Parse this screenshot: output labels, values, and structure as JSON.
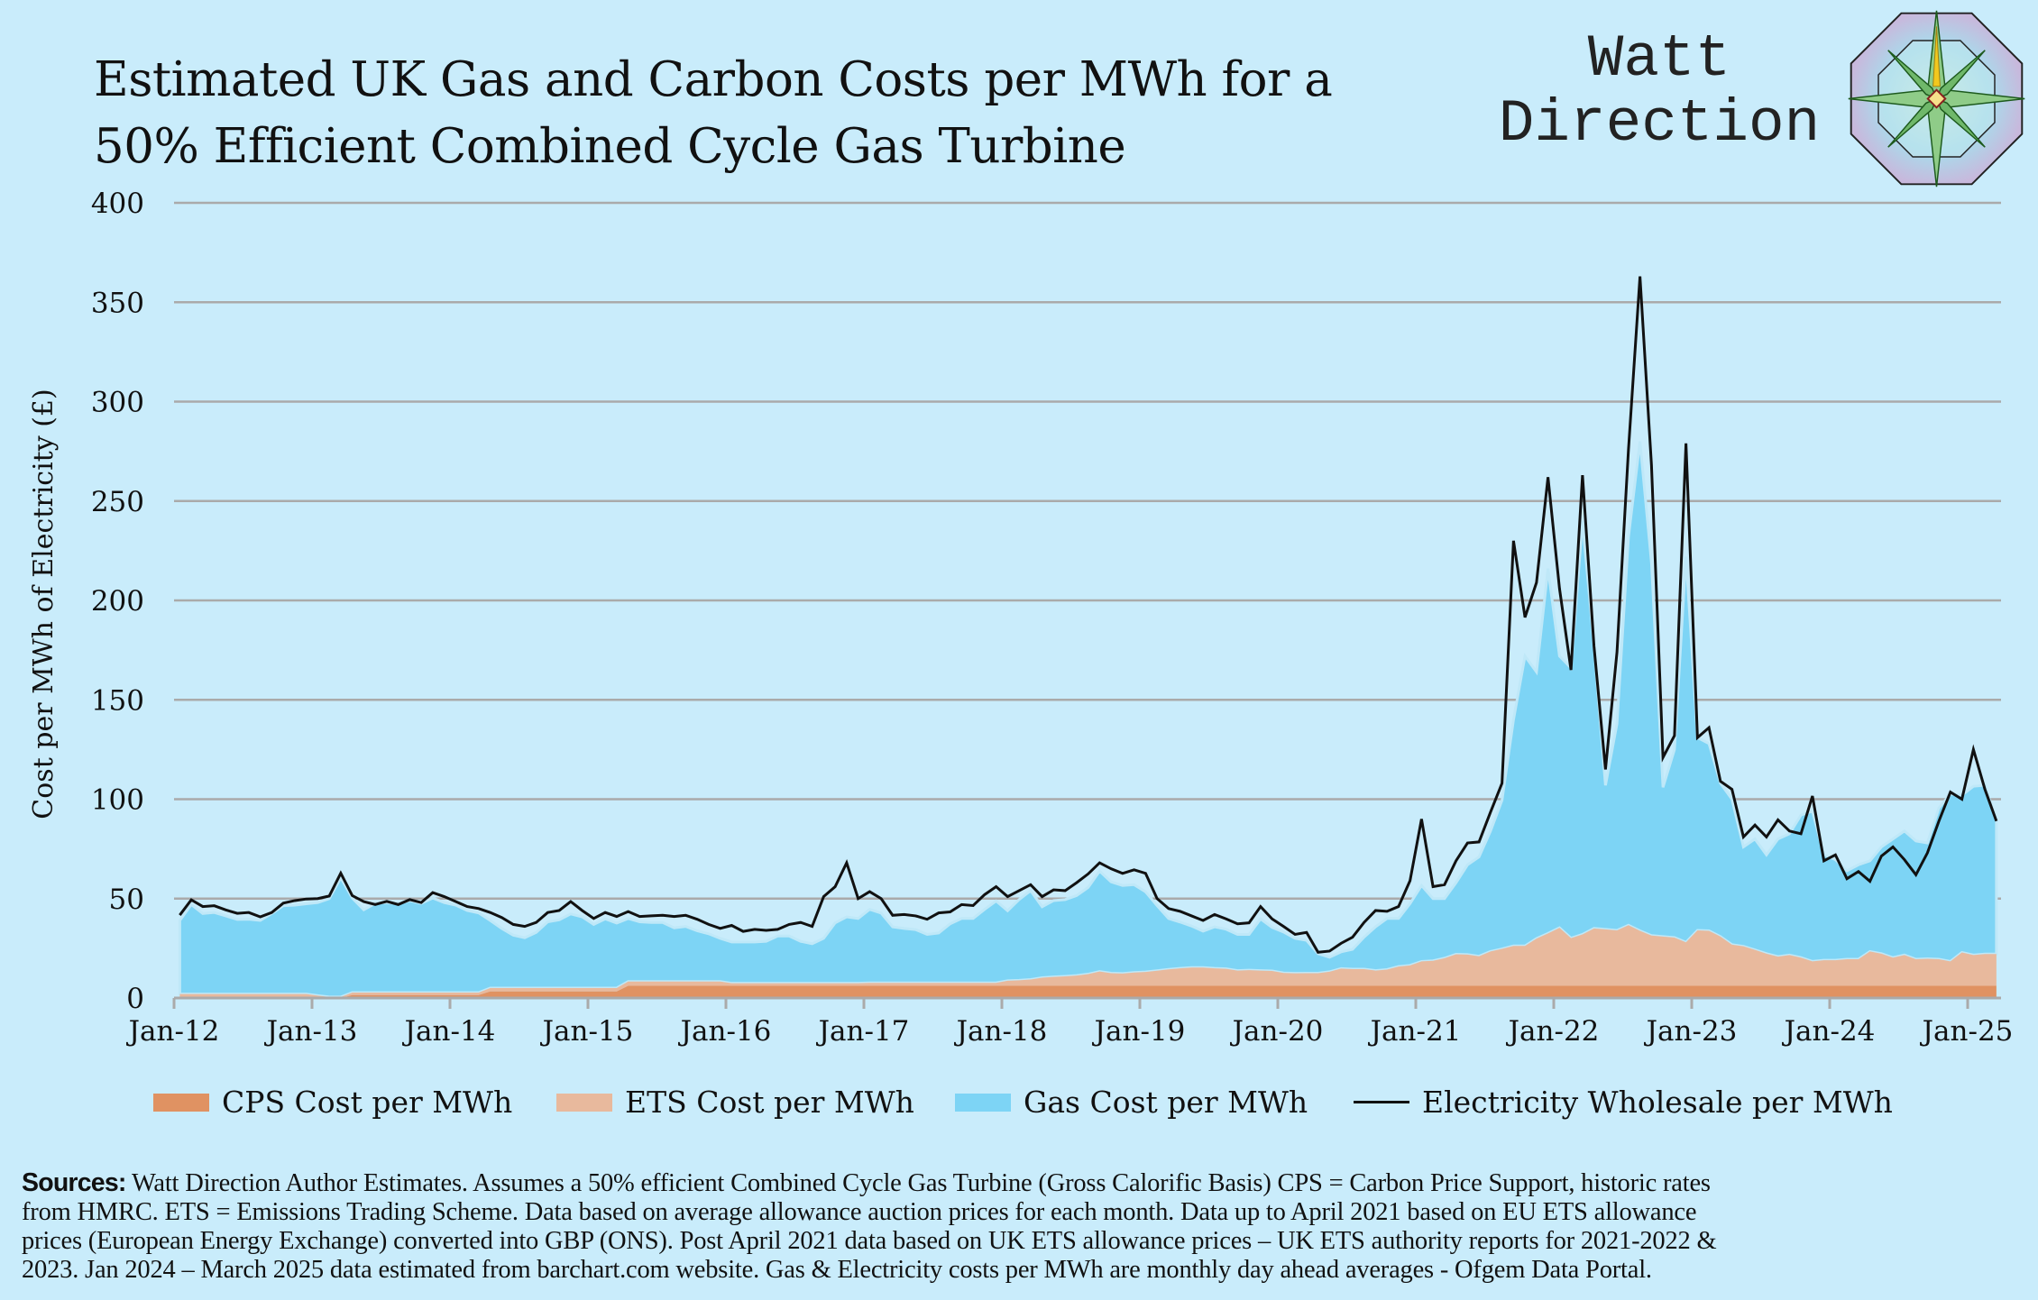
{
  "header": {
    "title_lines": [
      "Estimated UK Gas and Carbon Costs per MWh for a",
      "50% Efficient Combined Cycle Gas Turbine"
    ],
    "brand_lines": [
      "Watt",
      "Direction"
    ],
    "logo_icon": "compass-rose-icon"
  },
  "colors": {
    "background": "#c9ecfb",
    "cps": "#e09262",
    "ets": "#e8b99d",
    "gas": "#7dd4f5",
    "electricity": "#111111",
    "grid": "#aaaaaa"
  },
  "chart_data": {
    "type": "area",
    "title": "Estimated UK Gas and Carbon Costs per MWh for a 50% Efficient Combined Cycle Gas Turbine",
    "xlabel": "",
    "ylabel": "Cost per MWh of Electricity (£)",
    "ylim": [
      0,
      400
    ],
    "yticks": [
      "0",
      "50",
      "100",
      "150",
      "200",
      "250",
      "300",
      "350",
      "400"
    ],
    "xticks": [
      "Jan-12",
      "Jan-13",
      "Jan-14",
      "Jan-15",
      "Jan-16",
      "Jan-17",
      "Jan-18",
      "Jan-19",
      "Jan-20",
      "Jan-21",
      "Jan-22",
      "Jan-23",
      "Jan-24",
      "Jan-25"
    ],
    "x_start": "Jan-12",
    "x_end": "Mar-25",
    "frequency": "monthly",
    "grid": true,
    "legend_position": "bottom",
    "stacked": true,
    "series": [
      {
        "name": "CPS Cost per MWh",
        "kind": "area",
        "values": [
          0,
          0,
          0,
          0,
          0,
          0,
          0,
          0,
          0,
          0,
          0,
          0,
          0,
          0,
          0,
          1.5,
          1.5,
          1.5,
          1.5,
          1.5,
          1.5,
          1.5,
          1.5,
          1.5,
          1.5,
          1.5,
          1.5,
          3.3,
          3.3,
          3.3,
          3.3,
          3.3,
          3.3,
          3.3,
          3.3,
          3.3,
          3.3,
          3.3,
          3.3,
          6.1,
          6.1,
          6.1,
          6.1,
          6.1,
          6.1,
          6.1,
          6.1,
          6.1,
          6.1,
          6.1,
          6.1,
          6.1,
          6.1,
          6.1,
          6.1,
          6.1,
          6.1,
          6.1,
          6.1,
          6.1,
          6.1,
          6.1,
          6.1,
          6.1,
          6.1,
          6.1,
          6.1,
          6.1,
          6.1,
          6.1,
          6.1,
          6.1,
          6.1,
          6.1,
          6.1,
          6.1,
          6.1,
          6.1,
          6.1,
          6.1,
          6.1,
          6.1,
          6.1,
          6.1,
          6.1,
          6.1,
          6.1,
          6.1,
          6.1,
          6.1,
          6.1,
          6.1,
          6.1,
          6.1,
          6.1,
          6.1,
          6.1,
          6.1,
          6.1,
          6.1,
          6.1,
          6.1,
          6.1,
          6.1,
          6.1,
          6.1,
          6.1,
          6.1,
          6.1,
          6.1,
          6.1,
          6.1,
          6.1,
          6.1,
          6.1,
          6.1,
          6.1,
          6.1,
          6.1,
          6.1,
          6.1,
          6.1,
          6.1,
          6.1,
          6.1,
          6.1,
          6.1,
          6.1,
          6.1,
          6.1,
          6.1,
          6.1,
          6.1,
          6.1,
          6.1,
          6.1,
          6.1,
          6.1,
          6.1,
          6.1,
          6.1,
          6.1,
          6.1,
          6.1,
          6.1,
          6.1,
          6.1,
          6.1,
          6.1,
          6.1,
          6.1,
          6.1,
          6.1,
          6.1,
          6.1,
          6.1,
          6.1,
          6.1,
          6.1
        ]
      },
      {
        "name": "ETS Cost per MWh",
        "kind": "area",
        "values": [
          2,
          2,
          2,
          2,
          2,
          2,
          2,
          2,
          2,
          2,
          2,
          2,
          1.2,
          0.5,
          0.5,
          1.2,
          1.2,
          1.2,
          1.2,
          1.2,
          1.2,
          1.2,
          1.2,
          1.2,
          1.2,
          1.2,
          1.2,
          1.7,
          1.7,
          1.7,
          1.7,
          1.7,
          1.7,
          1.7,
          1.7,
          1.7,
          1.7,
          1.7,
          1.7,
          2.2,
          2.2,
          2.2,
          2.2,
          2.2,
          2.2,
          2.2,
          2.2,
          2.2,
          1.3,
          1.3,
          1.3,
          1.3,
          1.3,
          1.3,
          1.3,
          1.3,
          1.3,
          1.3,
          1.3,
          1.3,
          1.5,
          1.5,
          1.5,
          1.5,
          1.5,
          1.5,
          1.5,
          1.5,
          1.5,
          1.5,
          1.5,
          1.5,
          2.6,
          2.8,
          3.2,
          4.1,
          4.5,
          4.8,
          5.2,
          5.9,
          7.2,
          6.4,
          6.2,
          6.7,
          7,
          7.6,
          8.3,
          8.8,
          9.2,
          9.2,
          8.8,
          8.6,
          7.7,
          7.9,
          7.7,
          7.5,
          6.5,
          6.3,
          6.4,
          6.4,
          7.1,
          8.7,
          8.4,
          8.4,
          7.7,
          8.2,
          9.7,
          10.3,
          12.3,
          12.6,
          13.9,
          15.9,
          15.7,
          14.9,
          17.3,
          18.6,
          20.1,
          20.1,
          23.8,
          26.4,
          29.2,
          24,
          25.9,
          28.9,
          28.4,
          27.9,
          30.5,
          27.7,
          25.3,
          24.8,
          24.3,
          21.9,
          27.9,
          27.7,
          24.8,
          20.7,
          19.9,
          18.1,
          16.2,
          14.7,
          15.5,
          14.2,
          12.3,
          12.9,
          12.9,
          13.4,
          13.4,
          17.3,
          16.2,
          14.2,
          15.5,
          13.4,
          13.6,
          13.4,
          12.3,
          16.8,
          15.5,
          16,
          16
        ]
      },
      {
        "name": "Gas Cost per MWh",
        "kind": "area",
        "values": [
          37,
          45,
          40.5,
          41,
          39.3,
          37.5,
          37.6,
          37,
          40.5,
          44.4,
          44.7,
          45.4,
          46.8,
          49.5,
          60,
          47.6,
          41.7,
          44.9,
          45.3,
          44.7,
          46.3,
          44.9,
          47.6,
          45.3,
          44,
          41.3,
          40.1,
          34,
          30,
          26.6,
          25.3,
          28,
          33.3,
          34.3,
          37.3,
          35.8,
          32,
          34.8,
          32.7,
          31.7,
          30,
          29.7,
          29.7,
          27,
          27.7,
          25.5,
          24,
          21.7,
          20.8,
          20.8,
          20.8,
          21.1,
          23.8,
          23.8,
          21.1,
          19.9,
          22.6,
          30.4,
          33.4,
          32.6,
          37,
          35.1,
          28.2,
          27.4,
          26.8,
          24.4,
          25.1,
          29.7,
          32.4,
          32.4,
          37,
          41.2,
          35.2,
          40.6,
          44.7,
          35.7,
          38.4,
          38.6,
          40.2,
          43.6,
          50.5,
          45.9,
          44.3,
          44.2,
          40.3,
          32.8,
          25.6,
          23.3,
          20.9,
          18.3,
          20.9,
          19.9,
          18.2,
          18,
          26,
          21.9,
          20.6,
          17.6,
          16.5,
          9.8,
          7.3,
          8.4,
          10,
          16.1,
          22,
          25.7,
          24.2,
          31.1,
          38.2,
          31.3,
          30,
          36,
          45.2,
          50,
          60.6,
          74.8,
          113.8,
          145.8,
          134.1,
          183.5,
          136.7,
          135.9,
          208,
          142,
          72.5,
          104,
          195.4,
          246.2,
          187.6,
          75.1,
          94.6,
          194,
          97,
          94.2,
          77.1,
          73.2,
          50,
          55.8,
          49.7,
          59.2,
          61,
          71.7,
          75.6,
          53,
          50.6,
          44.5,
          47.5,
          45.6,
          53.7,
          59.7,
          62.4,
          59.5,
          58.3,
          76.1,
          84.2,
          79.1,
          84.9,
          84.9,
          66.9
        ]
      },
      {
        "name": "Electricity Wholesale per MWh",
        "kind": "line",
        "values": [
          41.7,
          49.4,
          46,
          46.4,
          44.3,
          42.6,
          43,
          40.8,
          43,
          47.7,
          49,
          49.8,
          50,
          51.3,
          62.8,
          51.5,
          48.5,
          47,
          48.6,
          47,
          49.5,
          48,
          53,
          51,
          48.5,
          46,
          45,
          43,
          40.5,
          37,
          36,
          38,
          43,
          44,
          48.5,
          44,
          40,
          43,
          41,
          43.5,
          41,
          41.3,
          41.6,
          41,
          41.6,
          39.6,
          37,
          35,
          36.5,
          33.5,
          34.5,
          34,
          34.5,
          37,
          38,
          36,
          51,
          56,
          68,
          50,
          53.5,
          50,
          41.6,
          42,
          41.3,
          39.6,
          42.8,
          43.3,
          47,
          46.5,
          52,
          56,
          51,
          54,
          57,
          51,
          54.4,
          54,
          58,
          62.4,
          68,
          65,
          62.7,
          64.5,
          62.7,
          50,
          45,
          43.6,
          41.3,
          39,
          42,
          39.8,
          37.3,
          37.8,
          46,
          39.8,
          36,
          32,
          33,
          23,
          23.6,
          27.5,
          30.6,
          38,
          44,
          43.6,
          46,
          59,
          90,
          56,
          57,
          69,
          78,
          78.5,
          93.5,
          108,
          230,
          191.5,
          209,
          262,
          206,
          165,
          263,
          177,
          115,
          174,
          276,
          363,
          268,
          121,
          132,
          279,
          131,
          136,
          109,
          105,
          81,
          87,
          81,
          89.6,
          84,
          82.6,
          101.6,
          69,
          72,
          60,
          63.6,
          58.7,
          71.4,
          76,
          69.6,
          62,
          73,
          89,
          103.6,
          100,
          125,
          105,
          89
        ]
      }
    ]
  },
  "legend": [
    {
      "label": "CPS Cost per MWh"
    },
    {
      "label": "ETS Cost per MWh"
    },
    {
      "label": "Gas Cost per MWh"
    },
    {
      "label": "Electricity Wholesale per MWh"
    }
  ],
  "sources": {
    "label": "Sources:",
    "lines": [
      " Watt Direction Author Estimates. Assumes a 50%  efficient Combined Cycle Gas Turbine (Gross Calorific Basis) CPS = Carbon Price Support, historic rates",
      "from HMRC. ETS = Emissions Trading Scheme. Data based on average allowance auction prices for each month.  Data up to April 2021 based on EU ETS allowance",
      "prices (European Energy Exchange) converted into GBP (ONS).  Post April 2021 data based on UK ETS allowance prices – UK ETS authority reports for 2021-2022 &",
      "2023. Jan 2024 – March 2025 data estimated from barchart.com website. Gas & Electricity costs per MWh are monthly day ahead averages - Ofgem Data Portal."
    ]
  }
}
